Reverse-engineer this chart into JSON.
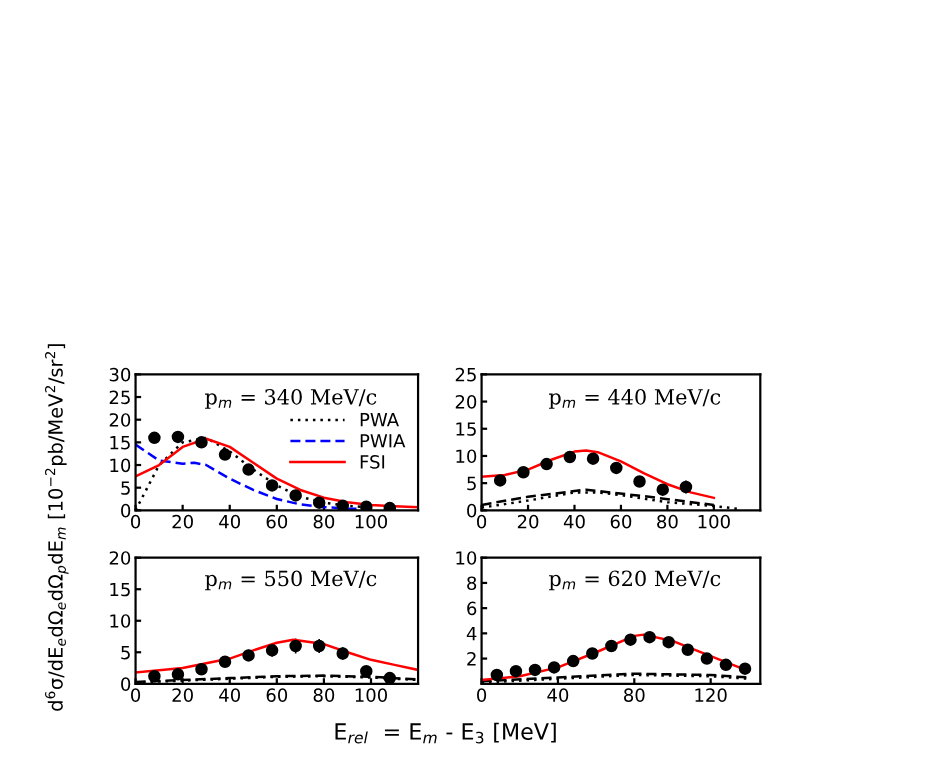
{
  "chart_data": [
    {
      "type": "line",
      "annotations": [
        "p$_{m}$ = 340 MeV/c"
      ],
      "ylabel": "d$^{6}$σ/dE$_{e}$dΩ$_{e}$dΩ$_{p}$dE$_{m}$ [10$^{−2}$pb/MeV$^{2}$/sr$^{2}$]",
      "xlim": [
        0,
        120
      ],
      "xticks": [
        0,
        20,
        40,
        60,
        80,
        100
      ],
      "ylim": [
        0,
        30
      ],
      "yticks": [
        0,
        5,
        10,
        15,
        20,
        25,
        30
      ],
      "legend": "center right",
      "grid": false,
      "series": [
        {
          "type": "scatter",
          "marker": "circle",
          "color": "#000000",
          "x": [
            8,
            18,
            28,
            38,
            48,
            58,
            68,
            78,
            88,
            98,
            108
          ],
          "values": [
            16,
            16.2,
            15,
            12.3,
            9,
            5.5,
            3.3,
            1.7,
            1,
            0.8,
            0.5
          ]
        },
        {
          "name": "PWA",
          "line_style": "dotted",
          "color": "#000000",
          "x": [
            0,
            5,
            10,
            20,
            30,
            40,
            50,
            60,
            70,
            80,
            90,
            100
          ],
          "values": [
            0,
            5,
            10,
            15,
            16,
            13,
            9,
            5.5,
            3,
            1.7,
            1,
            0.6
          ]
        },
        {
          "name": "PWIA",
          "line_style": "dashed",
          "color": "#0000ff",
          "x": [
            0,
            10,
            20,
            25,
            30,
            40,
            50,
            60,
            70,
            80,
            90,
            100
          ],
          "values": [
            14.5,
            11,
            10.3,
            10.5,
            10,
            7,
            4.5,
            2.5,
            1.3,
            0.7,
            0.4,
            0.3
          ]
        },
        {
          "name": "FSI",
          "line_style": "solid",
          "color": "#ff0000",
          "x": [
            0,
            10,
            20,
            30,
            40,
            50,
            60,
            70,
            80,
            90,
            100,
            110,
            120
          ],
          "values": [
            7.5,
            10,
            14,
            15.8,
            14,
            10.5,
            7,
            4.5,
            2.8,
            1.8,
            1.2,
            0.9,
            0.7
          ]
        }
      ]
    },
    {
      "type": "line",
      "annotations": [
        "p$_{m}$ = 440 MeV/c"
      ],
      "xlim": [
        0,
        120
      ],
      "xticks": [
        0,
        20,
        40,
        60,
        80,
        100
      ],
      "ylim": [
        0,
        25
      ],
      "yticks": [
        0,
        5,
        10,
        15,
        20,
        25
      ],
      "grid": false,
      "series": [
        {
          "type": "scatter",
          "marker": "circle",
          "color": "#000000",
          "x": [
            8,
            18,
            28,
            38,
            48,
            58,
            68,
            78,
            88
          ],
          "values": [
            5.5,
            7,
            8.5,
            9.8,
            9.5,
            7.8,
            5.3,
            3.8,
            4.3
          ],
          "errors": [
            null,
            null,
            null,
            null,
            null,
            null,
            null,
            null,
            1.2
          ]
        },
        {
          "line_style": "dotted",
          "color": "#000000",
          "x": [
            0,
            20,
            40,
            50,
            60,
            80,
            100,
            110
          ],
          "values": [
            0.5,
            1.8,
            3.3,
            3.3,
            2.8,
            1.5,
            0.8,
            0.3
          ]
        },
        {
          "line_style": "dashed",
          "color": "#000000",
          "x": [
            0,
            20,
            45,
            70,
            100
          ],
          "values": [
            1,
            2.5,
            3.8,
            2.6,
            1
          ]
        },
        {
          "line_style": "solid",
          "color": "#ff0000",
          "x": [
            0,
            10,
            20,
            30,
            40,
            45,
            50,
            60,
            70,
            80,
            90,
            100
          ],
          "values": [
            6.2,
            6.5,
            7.5,
            9.3,
            10.8,
            11,
            10.7,
            9,
            6.8,
            4.8,
            3.3,
            2.3
          ]
        }
      ]
    },
    {
      "type": "line",
      "annotations": [
        "p$_{m}$ = 550 MeV/c"
      ],
      "xlabel": "E$_{rel}$  = E$_{m}$ - E$_{3}$ [MeV]",
      "xlim": [
        0,
        120
      ],
      "xticks": [
        0,
        20,
        40,
        60,
        80,
        100
      ],
      "ylim": [
        0,
        20
      ],
      "yticks": [
        0,
        5,
        10,
        15,
        20
      ],
      "grid": false,
      "series": [
        {
          "type": "scatter",
          "marker": "circle",
          "color": "#000000",
          "x": [
            8,
            18,
            28,
            38,
            48,
            58,
            68,
            78,
            88,
            98,
            108
          ],
          "values": [
            1.2,
            1.5,
            2.3,
            3.5,
            4.5,
            5.3,
            6,
            6,
            4.8,
            2,
            0.9
          ],
          "errors": [
            0.5,
            0.5,
            0.6,
            0.8,
            0.9,
            1,
            1.2,
            1.1,
            1,
            0.8,
            0.5
          ]
        },
        {
          "line_style": "dotted",
          "color": "#000000",
          "x": [
            0,
            40,
            60,
            80,
            100,
            120
          ],
          "values": [
            0.2,
            0.8,
            1.1,
            1.2,
            1,
            0.6
          ]
        },
        {
          "line_style": "dashed",
          "color": "#000000",
          "x": [
            0,
            40,
            60,
            80,
            100,
            120
          ],
          "values": [
            0.3,
            0.9,
            1.2,
            1.3,
            1.1,
            0.7
          ]
        },
        {
          "line_style": "solid",
          "color": "#ff0000",
          "x": [
            0,
            20,
            40,
            50,
            60,
            67,
            80,
            90,
            100,
            110,
            120
          ],
          "values": [
            1.8,
            2.5,
            4,
            5.3,
            6.5,
            7,
            6.3,
            5,
            3.8,
            3,
            2.2
          ]
        }
      ]
    },
    {
      "type": "line",
      "annotations": [
        "p$_{m}$ = 620 MeV/c"
      ],
      "xlim": [
        0,
        146
      ],
      "xticks": [
        0,
        40,
        80,
        120
      ],
      "ylim": [
        0,
        10
      ],
      "yticks": [
        2,
        4,
        6,
        8,
        10
      ],
      "grid": false,
      "series": [
        {
          "type": "scatter",
          "marker": "circle",
          "color": "#000000",
          "x": [
            8,
            18,
            28,
            38,
            48,
            58,
            68,
            78,
            88,
            98,
            108,
            118,
            128,
            138
          ],
          "values": [
            0.7,
            1,
            1.1,
            1.3,
            1.8,
            2.4,
            3,
            3.5,
            3.7,
            3.3,
            2.7,
            2,
            1.5,
            1.2
          ],
          "errors": [
            0.4,
            0.3,
            0.2,
            0.2,
            0.2,
            0.2,
            0.2,
            0.2,
            0.2,
            0.2,
            0.2,
            0.2,
            0.3,
            0.4
          ]
        },
        {
          "line_style": "dotted",
          "color": "#000000",
          "x": [
            0,
            40,
            80,
            120,
            140
          ],
          "values": [
            0.1,
            0.4,
            0.7,
            0.6,
            0.4
          ]
        },
        {
          "line_style": "dashed",
          "color": "#000000",
          "x": [
            0,
            40,
            80,
            120,
            140
          ],
          "values": [
            0.2,
            0.5,
            0.8,
            0.7,
            0.5
          ]
        },
        {
          "line_style": "solid",
          "color": "#ff0000",
          "x": [
            0,
            20,
            40,
            60,
            80,
            85,
            100,
            120,
            140
          ],
          "values": [
            0.3,
            0.6,
            1.3,
            2.5,
            3.8,
            3.9,
            3.4,
            2.2,
            1
          ]
        }
      ]
    }
  ]
}
